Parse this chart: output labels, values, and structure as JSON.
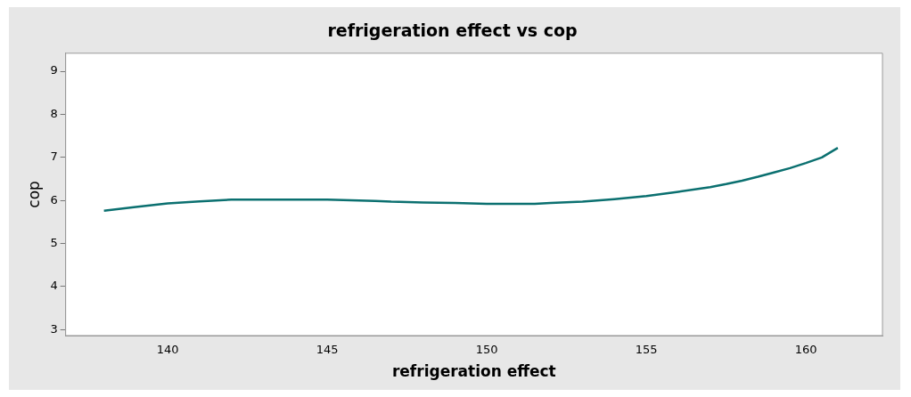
{
  "chart_data": {
    "type": "line",
    "title": "refrigeration effect vs cop",
    "xlabel": "refrigeration effect",
    "ylabel": "cop",
    "x": [
      138,
      139,
      140,
      141,
      142,
      143,
      144,
      145,
      146,
      146.5,
      147,
      148,
      149,
      150,
      151,
      151.5,
      152,
      153,
      154,
      155,
      156,
      157,
      157.5,
      158,
      158.5,
      159,
      159.5,
      160,
      160.5,
      161
    ],
    "series": [
      {
        "color": "#0b7070",
        "values": [
          5.76,
          5.85,
          5.93,
          5.98,
          6.02,
          6.02,
          6.02,
          6.02,
          6.0,
          5.99,
          5.97,
          5.95,
          5.94,
          5.92,
          5.92,
          5.92,
          5.94,
          5.97,
          6.03,
          6.1,
          6.2,
          6.31,
          6.38,
          6.46,
          6.55,
          6.65,
          6.75,
          6.87,
          7.0,
          7.22
        ]
      }
    ],
    "xlim": [
      136.8,
      162.4
    ],
    "xticks": [
      140,
      145,
      150,
      155,
      160
    ],
    "ylim": [
      2.86,
      9.42
    ],
    "yticks": [
      3,
      4,
      5,
      6,
      7,
      8,
      9
    ],
    "grid": false,
    "legend": false,
    "marker": "none",
    "line_style": "solid"
  }
}
